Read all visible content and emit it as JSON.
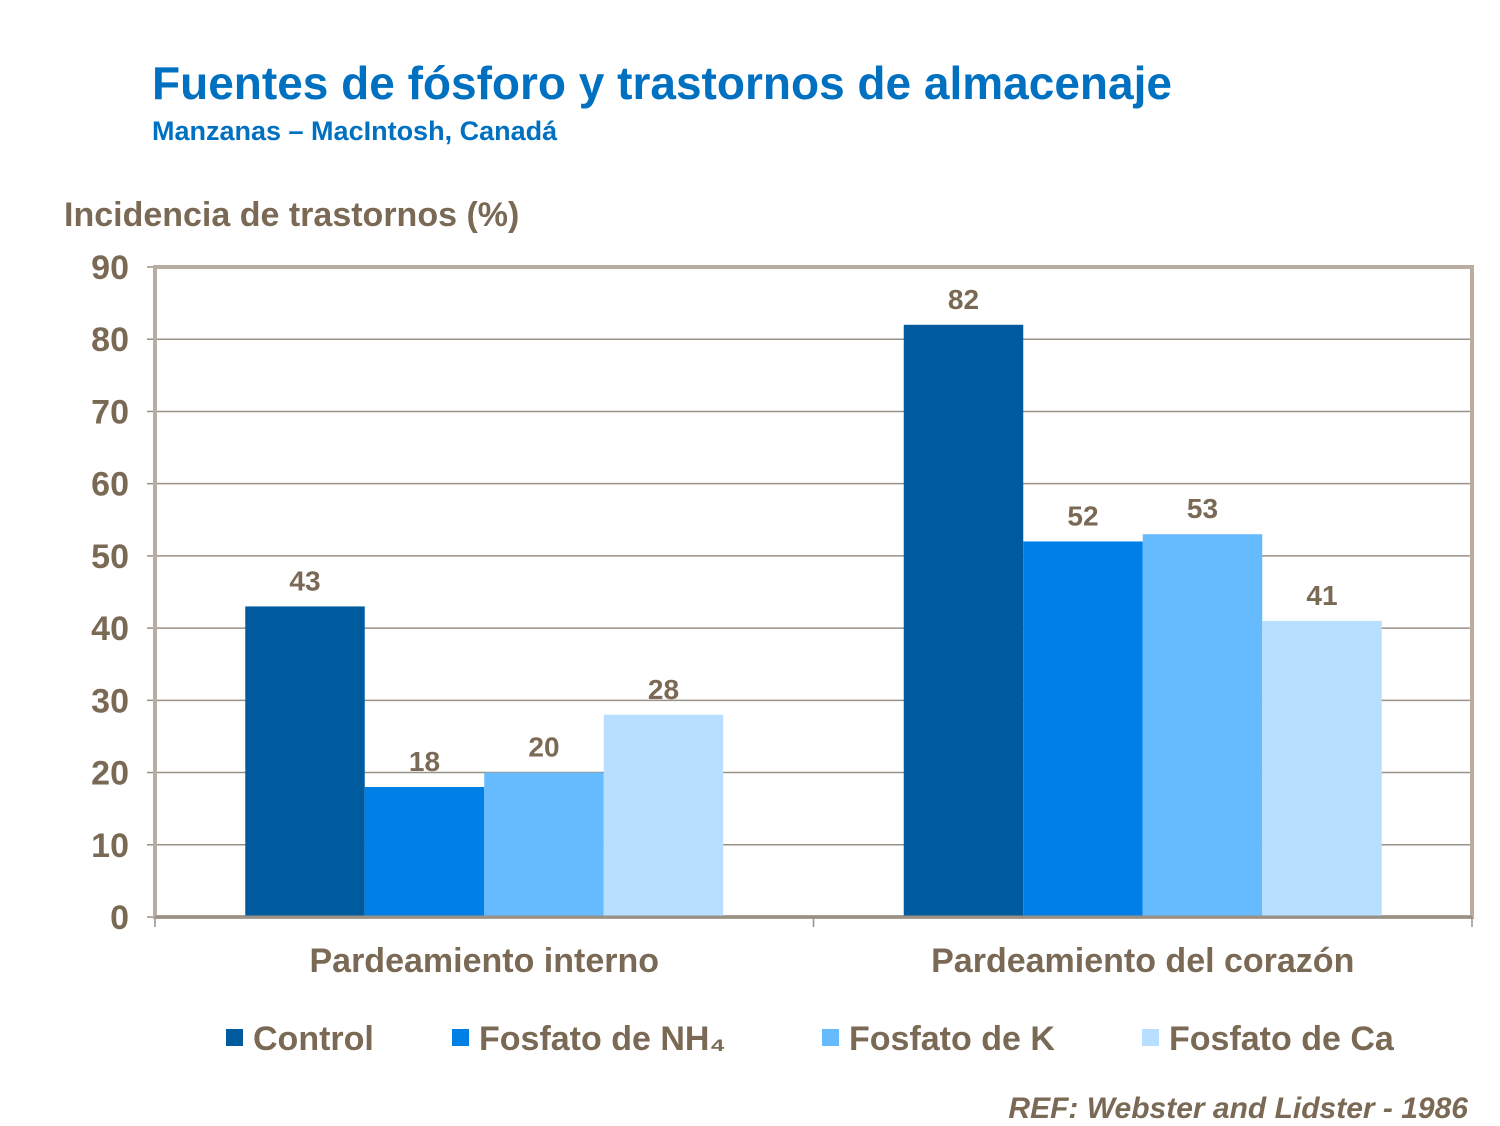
{
  "header": {
    "title": "Fuentes de fósforo y trastornos de almacenaje",
    "subtitle": "Manzanas – MacIntosh, Canadá"
  },
  "reference": "REF: Webster and Lidster - 1986",
  "chart_data": {
    "type": "bar",
    "title": "",
    "xlabel": "",
    "ylabel": "Incidencia de trastornos (%)",
    "ylim": [
      0,
      90
    ],
    "yticks": [
      0,
      10,
      20,
      30,
      40,
      50,
      60,
      70,
      80,
      90
    ],
    "grid": true,
    "legend_placement": "bottom",
    "categories": [
      "Pardeamiento interno",
      "Pardeamiento del corazón"
    ],
    "series": [
      {
        "name": "Control",
        "values": [
          43,
          82
        ],
        "color": "#005a9e"
      },
      {
        "name": "Fosfato de NH₄",
        "values": [
          18,
          52
        ],
        "color": "#0080e6"
      },
      {
        "name": "Fosfato de K",
        "values": [
          20,
          53
        ],
        "color": "#66bbff"
      },
      {
        "name": "Fosfato de Ca",
        "values": [
          28,
          41
        ],
        "color": "#b8dfff"
      }
    ]
  }
}
